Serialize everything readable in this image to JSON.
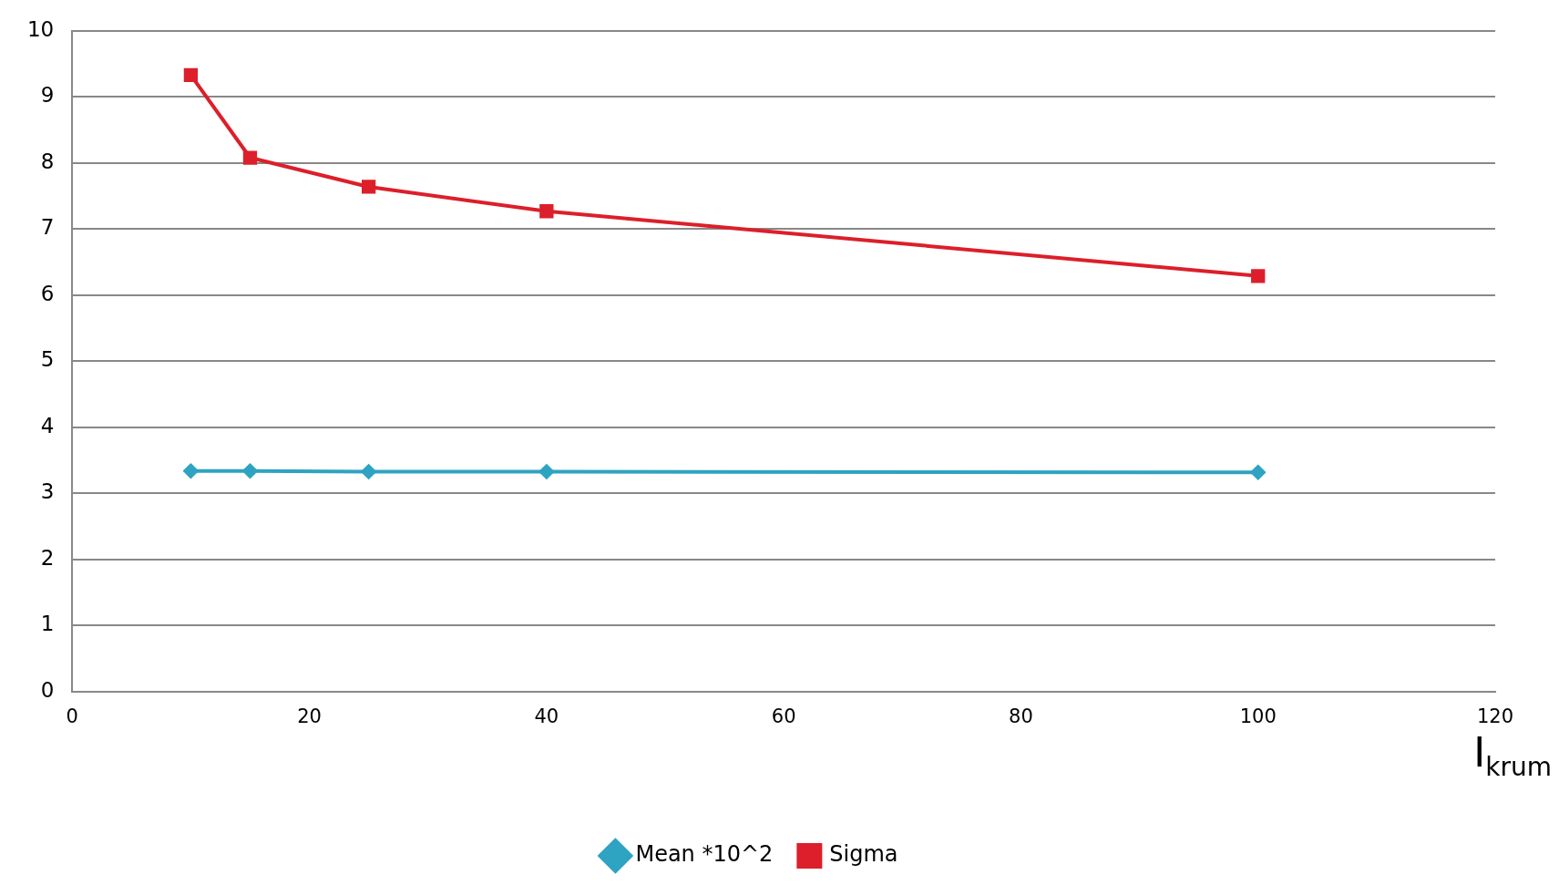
{
  "chart_data": {
    "type": "line",
    "xlabel": "I$_{krum}$",
    "x": [
      10,
      15,
      25,
      40,
      100
    ],
    "series": [
      {
        "name": "Mean *10^2",
        "color": "#2ea3c2",
        "marker": "diamond",
        "values": [
          3.34,
          3.34,
          3.33,
          3.33,
          3.32
        ]
      },
      {
        "name": "Sigma",
        "color": "#dc1f2a",
        "marker": "square",
        "values": [
          9.33,
          8.08,
          7.64,
          7.27,
          6.29
        ]
      }
    ],
    "xlim": [
      0,
      120
    ],
    "xticks": [
      0,
      20,
      40,
      60,
      80,
      100,
      120
    ],
    "ylim": [
      0,
      10
    ],
    "yticks": [
      0,
      1,
      2,
      3,
      4,
      5,
      6,
      7,
      8,
      9,
      10
    ],
    "grid": "y",
    "legend": "bottom",
    "line_style": "solid"
  }
}
